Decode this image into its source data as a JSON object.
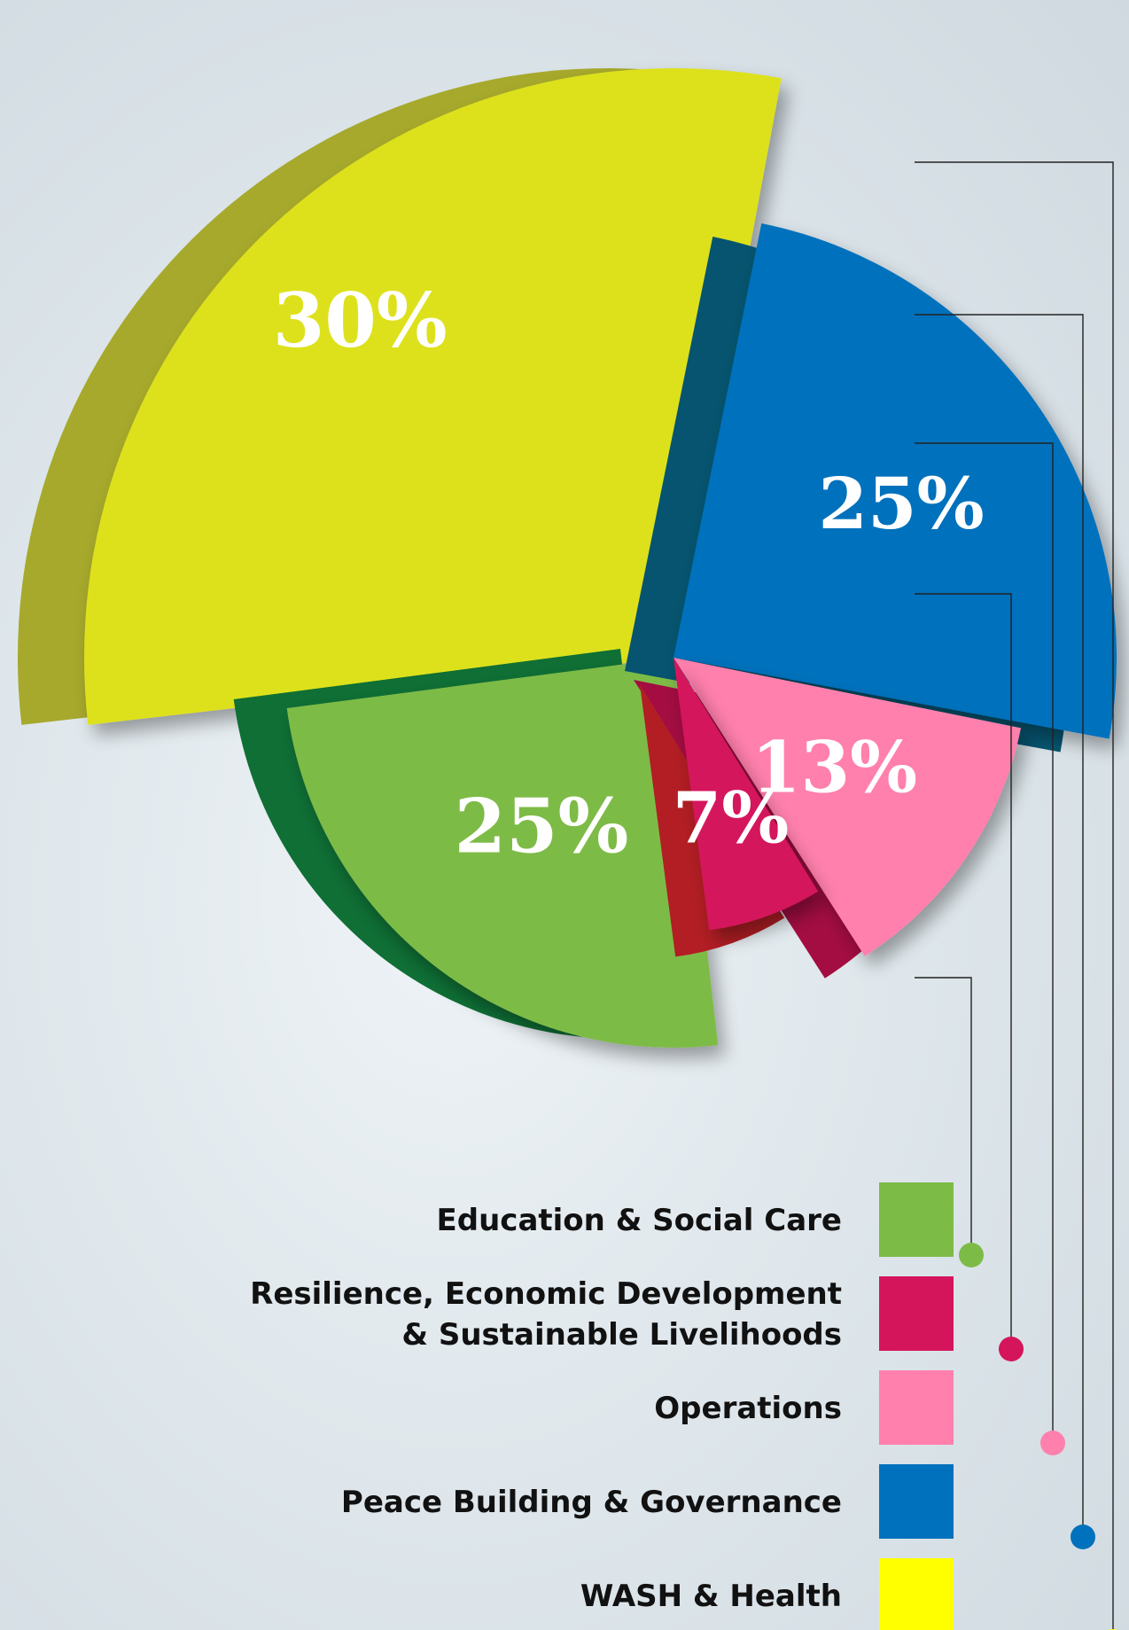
{
  "chart_data": {
    "type": "pie",
    "title": "",
    "slices": [
      {
        "name": "WASH & Health",
        "value": 30,
        "label": "30%",
        "color": "#dde11f",
        "side": "#a7a92c",
        "legend_color": "#ffff00"
      },
      {
        "name": "Peace Building & Governance",
        "value": 25,
        "label": "25%",
        "color": "#0071bc",
        "side": "#06546f",
        "legend_color": "#0071bc"
      },
      {
        "name": "Operations",
        "value": 13,
        "label": "13%",
        "color": "#ff80ad",
        "side": "#a30d42",
        "legend_color": "#ff80ad"
      },
      {
        "name": "Resilience, Economic Development & Sustainable Livelihoods",
        "value": 7,
        "label": "7%",
        "color": "#d4155c",
        "side": "#b21e24",
        "legend_color": "#d4155c"
      },
      {
        "name": "Education & Social Care",
        "value": 25,
        "label": "25%",
        "color": "#7dbb47",
        "side": "#0f6f35",
        "legend_color": "#7dbb47"
      }
    ]
  },
  "legend": [
    {
      "lines": [
        "Education & Social Care"
      ],
      "color": "#7dbb47"
    },
    {
      "lines": [
        "Resilience, Economic Development",
        "& Sustainable Livelihoods"
      ],
      "color": "#d4155c"
    },
    {
      "lines": [
        "Operations"
      ],
      "color": "#ff80ad"
    },
    {
      "lines": [
        "Peace Building & Governance"
      ],
      "color": "#0071bc"
    },
    {
      "lines": [
        "WASH & Health"
      ],
      "color": "#ffff00"
    }
  ]
}
